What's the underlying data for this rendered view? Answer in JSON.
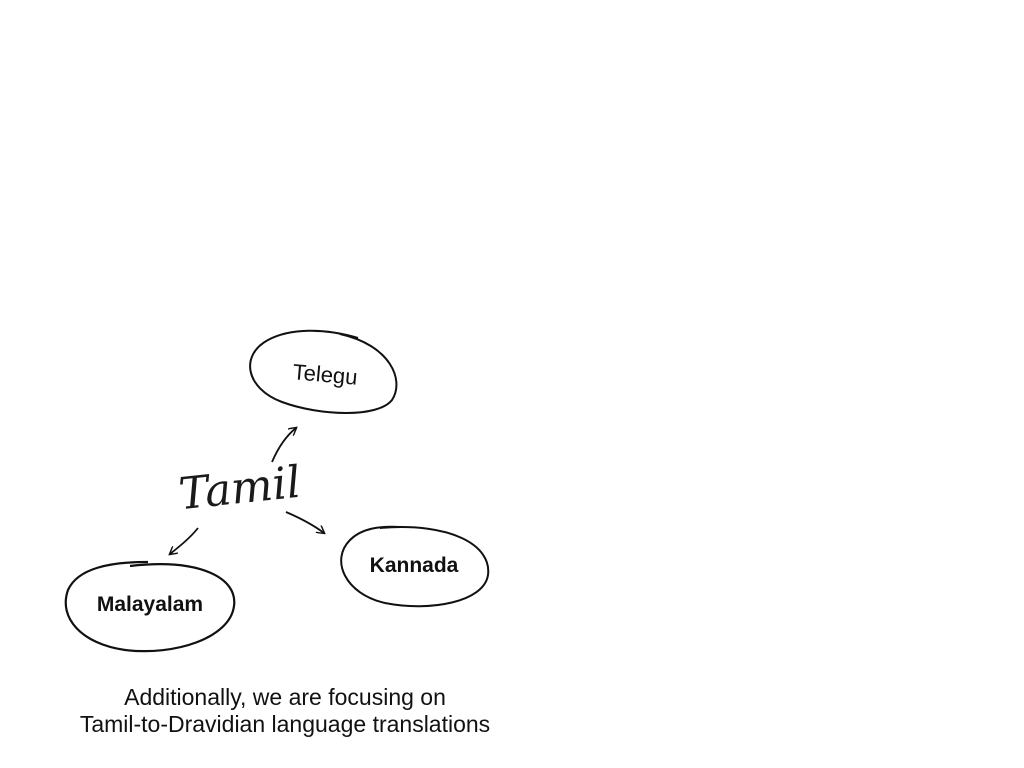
{
  "diagram": {
    "root": "Tamil",
    "nodes": {
      "telegu": "Telegu",
      "kannada": "Kannada",
      "malayalam": "Malayalam"
    },
    "edges": [
      {
        "from": "Tamil",
        "to": "Telegu"
      },
      {
        "from": "Tamil",
        "to": "Kannada"
      },
      {
        "from": "Tamil",
        "to": "Malayalam"
      }
    ]
  },
  "caption": {
    "line1": "Additionally, we are focusing on",
    "line2": "Tamil-to-Dravidian language translations"
  },
  "colors": {
    "ink": "#111111",
    "background": "#ffffff"
  }
}
